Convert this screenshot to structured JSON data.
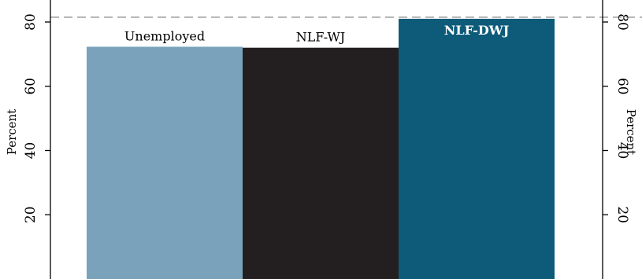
{
  "chart_data": {
    "type": "bar",
    "categories": [
      "Unemployed",
      "NLF-WJ",
      "NLF-DWJ"
    ],
    "values": [
      72.3,
      72.0,
      81.0
    ],
    "ylabel_left": "Percent",
    "ylabel_right": "Percent",
    "y_ticks": [
      20,
      40,
      60,
      80
    ],
    "ylim": [
      0,
      82
    ],
    "reference_line": 81.5,
    "grid": false,
    "legend": "none"
  },
  "colors": {
    "series": [
      "#7aa3bb",
      "#231f20",
      "#0d5b79"
    ],
    "reference_line": "#b3b3b3",
    "label_inside": "#ffffff",
    "label_outside": "#000000"
  }
}
